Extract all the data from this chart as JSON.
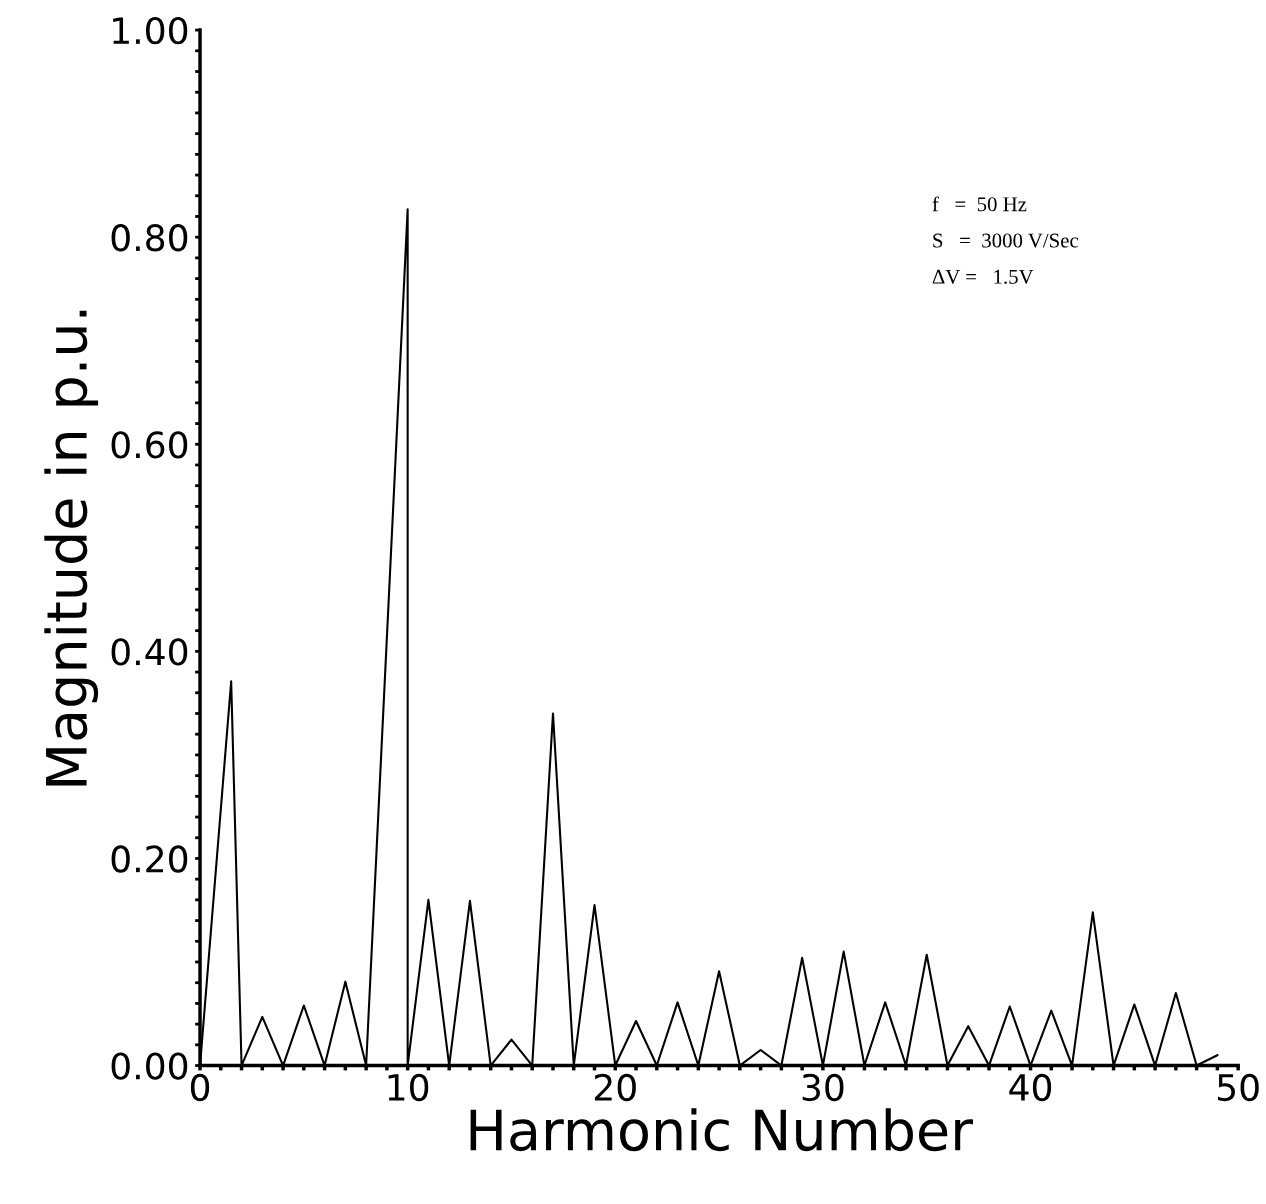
{
  "chart_data": {
    "type": "line",
    "xlabel": "Harmonic Number",
    "ylabel": "Magnitude in p.u.",
    "x": [
      0,
      1.5,
      2,
      3,
      4,
      5,
      6,
      7,
      8,
      10,
      10,
      11,
      12,
      13,
      14,
      15,
      16,
      17,
      18,
      19,
      20,
      21,
      22,
      23,
      24,
      25,
      26,
      27,
      28,
      29,
      30,
      31,
      32,
      33,
      34,
      35,
      36,
      37,
      38,
      39,
      40,
      41,
      42,
      43,
      44,
      45,
      46,
      47,
      48,
      49
    ],
    "values": [
      0,
      0.371,
      0,
      0.047,
      0,
      0.058,
      0,
      0.081,
      0,
      0.827,
      0,
      0.16,
      0,
      0.159,
      0,
      0.025,
      0,
      0.34,
      0,
      0.155,
      0,
      0.043,
      0,
      0.061,
      0,
      0.091,
      0,
      0.015,
      0,
      0.104,
      0,
      0.11,
      0,
      0.061,
      0,
      0.107,
      0,
      0.038,
      0,
      0.057,
      0,
      0.053,
      0,
      0.148,
      0,
      0.059,
      0,
      0.07,
      0,
      0.01
    ],
    "color": "#000000",
    "marker": "none",
    "line_style": "solid",
    "grid": false,
    "legend": false,
    "xlim": [
      0,
      50
    ],
    "ylim": [
      0,
      1
    ],
    "xticks": [
      0,
      {
        "value": 1,
        "label": null
      },
      {
        "value": 2,
        "label": null
      },
      {
        "value": 3,
        "label": null
      },
      {
        "value": 4,
        "label": null
      },
      {
        "value": 5,
        "label": null
      },
      {
        "value": 6,
        "label": null
      },
      {
        "value": 7,
        "label": null
      },
      {
        "value": 8,
        "label": null
      },
      {
        "value": 9,
        "label": null
      },
      10,
      {
        "value": 11,
        "label": null
      },
      {
        "value": 12,
        "label": null
      },
      {
        "value": 13,
        "label": null
      },
      {
        "value": 14,
        "label": null
      },
      {
        "value": 15,
        "label": null
      },
      {
        "value": 16,
        "label": null
      },
      {
        "value": 17,
        "label": null
      },
      {
        "value": 18,
        "label": null
      },
      {
        "value": 19,
        "label": null
      },
      20,
      {
        "value": 21,
        "label": null
      },
      {
        "value": 22,
        "label": null
      },
      {
        "value": 23,
        "label": null
      },
      {
        "value": 24,
        "label": null
      },
      {
        "value": 25,
        "label": null
      },
      {
        "value": 26,
        "label": null
      },
      {
        "value": 27,
        "label": null
      },
      {
        "value": 28,
        "label": null
      },
      {
        "value": 29,
        "label": null
      },
      30,
      {
        "value": 31,
        "label": null
      },
      {
        "value": 32,
        "label": null
      },
      {
        "value": 33,
        "label": null
      },
      {
        "value": 34,
        "label": null
      },
      {
        "value": 35,
        "label": null
      },
      {
        "value": 36,
        "label": null
      },
      {
        "value": 37,
        "label": null
      },
      {
        "value": 38,
        "label": null
      },
      {
        "value": 39,
        "label": null
      },
      40,
      {
        "value": 41,
        "label": null
      },
      {
        "value": 42,
        "label": null
      },
      {
        "value": 43,
        "label": null
      },
      {
        "value": 44,
        "label": null
      },
      {
        "value": 45,
        "label": null
      },
      {
        "value": 46,
        "label": null
      },
      {
        "value": 47,
        "label": null
      },
      {
        "value": 48,
        "label": null
      },
      {
        "value": 49,
        "label": null
      },
      50
    ],
    "yticks": [
      {
        "value": 0,
        "label": "0.00"
      },
      {
        "value": 0.02,
        "label": null
      },
      {
        "value": 0.04,
        "label": null
      },
      {
        "value": 0.06,
        "label": null
      },
      {
        "value": 0.08,
        "label": null
      },
      {
        "value": 0.1,
        "label": null
      },
      {
        "value": 0.12,
        "label": null
      },
      {
        "value": 0.14,
        "label": null
      },
      {
        "value": 0.16,
        "label": null
      },
      {
        "value": 0.18,
        "label": null
      },
      {
        "value": 0.2,
        "label": "0.20"
      },
      {
        "value": 0.22,
        "label": null
      },
      {
        "value": 0.24,
        "label": null
      },
      {
        "value": 0.26,
        "label": null
      },
      {
        "value": 0.28,
        "label": null
      },
      {
        "value": 0.3,
        "label": null
      },
      {
        "value": 0.32,
        "label": null
      },
      {
        "value": 0.34,
        "label": null
      },
      {
        "value": 0.36,
        "label": null
      },
      {
        "value": 0.38,
        "label": null
      },
      {
        "value": 0.4,
        "label": "0.40"
      },
      {
        "value": 0.42,
        "label": null
      },
      {
        "value": 0.44,
        "label": null
      },
      {
        "value": 0.46,
        "label": null
      },
      {
        "value": 0.48,
        "label": null
      },
      {
        "value": 0.5,
        "label": null
      },
      {
        "value": 0.52,
        "label": null
      },
      {
        "value": 0.54,
        "label": null
      },
      {
        "value": 0.56,
        "label": null
      },
      {
        "value": 0.58,
        "label": null
      },
      {
        "value": 0.6,
        "label": "0.60"
      },
      {
        "value": 0.62,
        "label": null
      },
      {
        "value": 0.64,
        "label": null
      },
      {
        "value": 0.66,
        "label": null
      },
      {
        "value": 0.68,
        "label": null
      },
      {
        "value": 0.7,
        "label": null
      },
      {
        "value": 0.72,
        "label": null
      },
      {
        "value": 0.74,
        "label": null
      },
      {
        "value": 0.76,
        "label": null
      },
      {
        "value": 0.78,
        "label": null
      },
      {
        "value": 0.8,
        "label": "0.80"
      },
      {
        "value": 0.82,
        "label": null
      },
      {
        "value": 0.84,
        "label": null
      },
      {
        "value": 0.86,
        "label": null
      },
      {
        "value": 0.88,
        "label": null
      },
      {
        "value": 0.9,
        "label": null
      },
      {
        "value": 0.92,
        "label": null
      },
      {
        "value": 0.94,
        "label": null
      },
      {
        "value": 0.96,
        "label": null
      },
      {
        "value": 0.98,
        "label": null
      },
      {
        "value": 1,
        "label": "1.00"
      }
    ],
    "annotations": [
      "f   =  50 Hz",
      "S   =  3000 V/Sec",
      "ΔV =   1.5V"
    ]
  }
}
